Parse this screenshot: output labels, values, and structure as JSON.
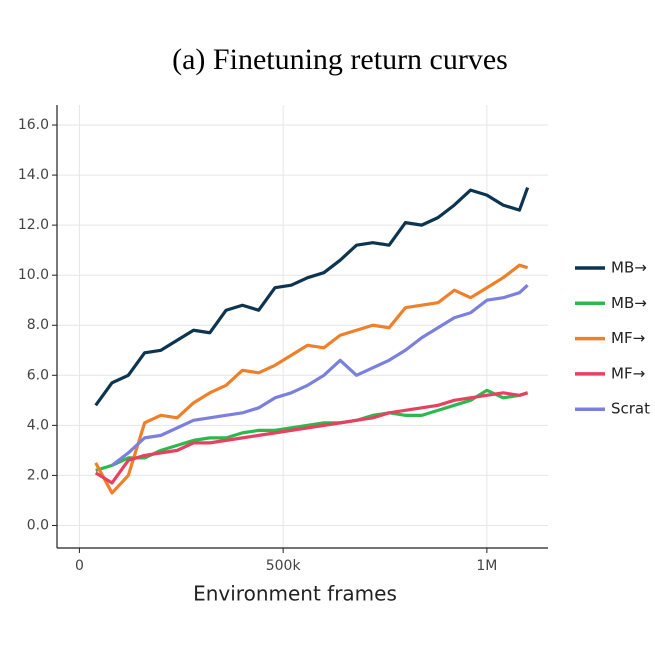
{
  "chart_data": {
    "type": "line",
    "title": "(a) Finetuning return curves",
    "x_label": "Environment frames",
    "x": [
      40000,
      80000,
      120000,
      160000,
      200000,
      240000,
      280000,
      320000,
      360000,
      400000,
      440000,
      480000,
      520000,
      560000,
      600000,
      640000,
      680000,
      720000,
      760000,
      800000,
      840000,
      880000,
      920000,
      960000,
      1000000,
      1040000,
      1080000,
      1100000
    ],
    "series": [
      {
        "name": "MB→",
        "color": "#0d3450",
        "values": [
          4.8,
          5.7,
          6.0,
          6.9,
          7.0,
          7.4,
          7.8,
          7.7,
          8.6,
          8.8,
          8.6,
          9.5,
          9.6,
          9.9,
          10.1,
          10.6,
          11.2,
          11.3,
          11.2,
          12.1,
          12.0,
          12.3,
          12.8,
          13.4,
          13.2,
          12.8,
          12.6,
          13.5
        ]
      },
      {
        "name": "MB→",
        "color": "#2db84d",
        "values": [
          2.2,
          2.4,
          2.7,
          2.7,
          3.0,
          3.2,
          3.4,
          3.5,
          3.5,
          3.7,
          3.8,
          3.8,
          3.9,
          4.0,
          4.1,
          4.1,
          4.2,
          4.4,
          4.5,
          4.4,
          4.4,
          4.6,
          4.8,
          5.0,
          5.4,
          5.1,
          5.2,
          5.3
        ]
      },
      {
        "name": "MF→",
        "color": "#f07f2a",
        "values": [
          2.5,
          1.3,
          2.0,
          4.1,
          4.4,
          4.3,
          4.9,
          5.3,
          5.6,
          6.2,
          6.1,
          6.4,
          6.8,
          7.2,
          7.1,
          7.6,
          7.8,
          8.0,
          7.9,
          8.7,
          8.8,
          8.9,
          9.4,
          9.1,
          9.5,
          9.9,
          10.4,
          10.3
        ]
      },
      {
        "name": "MF→",
        "color": "#e84060",
        "values": [
          2.1,
          1.7,
          2.6,
          2.8,
          2.9,
          3.0,
          3.3,
          3.3,
          3.4,
          3.5,
          3.6,
          3.7,
          3.8,
          3.9,
          4.0,
          4.1,
          4.2,
          4.3,
          4.5,
          4.6,
          4.7,
          4.8,
          5.0,
          5.1,
          5.2,
          5.3,
          5.2,
          5.3
        ]
      },
      {
        "name": "Scrat",
        "color": "#7b80dc",
        "values": [
          null,
          2.4,
          2.9,
          3.5,
          3.6,
          3.9,
          4.2,
          4.3,
          4.4,
          4.5,
          4.7,
          5.1,
          5.3,
          5.6,
          6.0,
          6.6,
          6.0,
          6.3,
          6.6,
          7.0,
          7.5,
          7.9,
          8.3,
          8.5,
          9.0,
          9.1,
          9.3,
          9.6
        ]
      }
    ],
    "xlim": [
      -55000,
      1150000
    ],
    "ylim": [
      -0.9,
      16.8
    ],
    "xticks": [
      0,
      {
        "value": 500000,
        "label": "500k"
      },
      {
        "value": 1000000,
        "label": "1M"
      }
    ],
    "yticks": [
      {
        "value": 0,
        "label": "0.0"
      },
      {
        "value": 2,
        "label": "2.0"
      },
      {
        "value": 4,
        "label": "4.0"
      },
      {
        "value": 6,
        "label": "6.0"
      },
      {
        "value": 8,
        "label": "8.0"
      },
      {
        "value": 10,
        "label": "10.0"
      },
      {
        "value": 12,
        "label": "12.0"
      },
      {
        "value": 14,
        "label": "14.0"
      },
      {
        "value": 16,
        "label": "16.0"
      }
    ],
    "grid": true
  }
}
